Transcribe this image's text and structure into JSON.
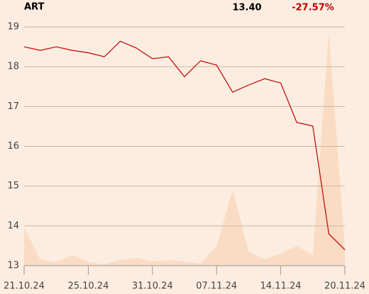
{
  "chart_data": {
    "type": "line",
    "title": "ART",
    "price": "13.40",
    "change": "-27.57%",
    "change_color": "#c00000",
    "categories": [
      "21.10.24",
      null,
      null,
      null,
      "25.10.24",
      null,
      null,
      null,
      "31.10.24",
      null,
      null,
      null,
      "07.11.24",
      null,
      null,
      null,
      "14.11.24",
      null,
      null,
      null,
      "20.11.24"
    ],
    "series": [
      {
        "name": "Price",
        "color": "#c00000",
        "values": [
          18.5,
          18.41,
          18.5,
          18.41,
          18.35,
          18.25,
          18.64,
          18.47,
          18.2,
          18.25,
          17.75,
          18.15,
          18.04,
          17.36,
          17.54,
          17.7,
          17.59,
          16.6,
          16.51,
          13.8,
          13.4
        ]
      },
      {
        "name": "Volume",
        "color": "#fadcc4",
        "axis": "y2",
        "values": [
          55,
          9,
          5,
          15,
          5,
          2,
          8,
          11,
          6,
          8,
          6,
          3,
          28,
          108,
          20,
          9,
          17,
          28,
          15,
          333,
          25
        ]
      }
    ],
    "ylim": [
      13,
      19
    ],
    "yticks": [
      13,
      14,
      15,
      16,
      17,
      18,
      19
    ],
    "y2lim": [
      0,
      340
    ],
    "grid": true
  }
}
